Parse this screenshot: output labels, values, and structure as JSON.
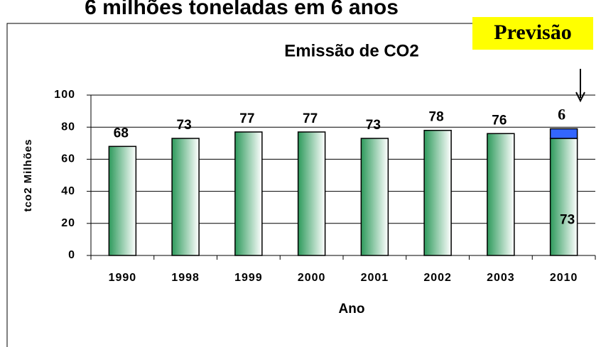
{
  "heading": "6 milhões toneladas em 6 anos",
  "chart_data": {
    "type": "bar",
    "title": "Emissão de CO2",
    "annotation": "Previsão",
    "x_label": "Ano",
    "y_label": "tco2 Milhões",
    "categories": [
      "1990",
      "1998",
      "1999",
      "2000",
      "2001",
      "2002",
      "2003",
      "2010"
    ],
    "series": [
      {
        "color": "#2e9a5c",
        "values": [
          68,
          73,
          77,
          77,
          73,
          78,
          76,
          73
        ]
      },
      {
        "color": "#3366ff",
        "values": [
          null,
          null,
          null,
          null,
          null,
          null,
          null,
          6
        ]
      }
    ],
    "stacked": true,
    "ylim": [
      0,
      100
    ],
    "yticks": [
      0,
      20,
      40,
      60,
      80,
      100
    ],
    "grid": true
  }
}
